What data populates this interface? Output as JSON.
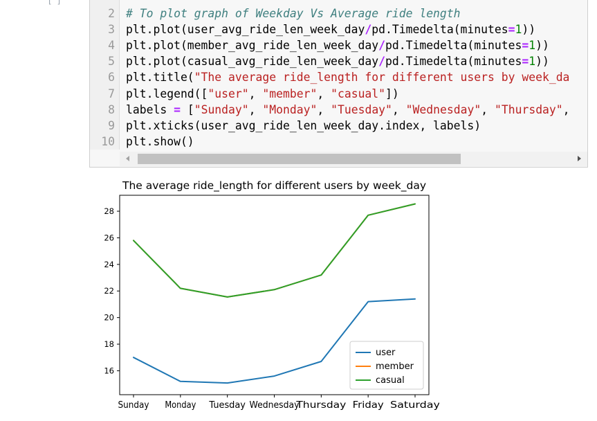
{
  "top": {
    "ellipsis": "[ ]"
  },
  "code_cell": {
    "lines": [
      {
        "num": "2",
        "parts": [
          {
            "t": "# To plot graph of Weekday Vs Average ride length",
            "c": "cm"
          }
        ]
      },
      {
        "num": "3",
        "parts": [
          {
            "t": "plt.plot(user_avg_ride_len_week_day",
            "c": "pn"
          },
          {
            "t": "/",
            "c": "op"
          },
          {
            "t": "pd.Timedelta(minutes",
            "c": "pn"
          },
          {
            "t": "=",
            "c": "op"
          },
          {
            "t": "1",
            "c": "nu"
          },
          {
            "t": "))",
            "c": "pn"
          }
        ]
      },
      {
        "num": "4",
        "parts": [
          {
            "t": "plt.plot(member_avg_ride_len_week_day",
            "c": "pn"
          },
          {
            "t": "/",
            "c": "op"
          },
          {
            "t": "pd.Timedelta(minutes",
            "c": "pn"
          },
          {
            "t": "=",
            "c": "op"
          },
          {
            "t": "1",
            "c": "nu"
          },
          {
            "t": "))",
            "c": "pn"
          }
        ]
      },
      {
        "num": "5",
        "parts": [
          {
            "t": "plt.plot(casual_avg_ride_len_week_day",
            "c": "pn"
          },
          {
            "t": "/",
            "c": "op"
          },
          {
            "t": "pd.Timedelta(minutes",
            "c": "pn"
          },
          {
            "t": "=",
            "c": "op"
          },
          {
            "t": "1",
            "c": "nu"
          },
          {
            "t": "))",
            "c": "pn"
          }
        ]
      },
      {
        "num": "6",
        "parts": [
          {
            "t": "plt.title(",
            "c": "pn"
          },
          {
            "t": "\"The average ride_length for different users by week_da",
            "c": "st"
          }
        ]
      },
      {
        "num": "7",
        "parts": [
          {
            "t": "plt.legend([",
            "c": "pn"
          },
          {
            "t": "\"user\"",
            "c": "st"
          },
          {
            "t": ", ",
            "c": "pn"
          },
          {
            "t": "\"member\"",
            "c": "st"
          },
          {
            "t": ", ",
            "c": "pn"
          },
          {
            "t": "\"casual\"",
            "c": "st"
          },
          {
            "t": "])",
            "c": "pn"
          }
        ]
      },
      {
        "num": "8",
        "parts": [
          {
            "t": "labels ",
            "c": "pn"
          },
          {
            "t": "=",
            "c": "op"
          },
          {
            "t": " [",
            "c": "pn"
          },
          {
            "t": "\"Sunday\"",
            "c": "st"
          },
          {
            "t": ", ",
            "c": "pn"
          },
          {
            "t": "\"Monday\"",
            "c": "st"
          },
          {
            "t": ", ",
            "c": "pn"
          },
          {
            "t": "\"Tuesday\"",
            "c": "st"
          },
          {
            "t": ", ",
            "c": "pn"
          },
          {
            "t": "\"Wednesday\"",
            "c": "st"
          },
          {
            "t": ", ",
            "c": "pn"
          },
          {
            "t": "\"Thursday\"",
            "c": "st"
          },
          {
            "t": ",",
            "c": "pn"
          }
        ]
      },
      {
        "num": "9",
        "parts": [
          {
            "t": "plt.xticks(user_avg_ride_len_week_day.index, labels)",
            "c": "pn"
          }
        ]
      },
      {
        "num": "10",
        "parts": [
          {
            "t": "plt.show()",
            "c": "pn"
          }
        ]
      }
    ]
  },
  "scrollbar": {
    "thumb_fraction": 0.73
  },
  "colors": {
    "user": "#1f77b4",
    "member": "#ff7f0e",
    "casual": "#2ca02c",
    "code_bg": "#f7f7f7"
  },
  "chart_data": {
    "type": "line",
    "title": "The average ride_length for different users by week_day",
    "xlabel": "",
    "ylabel": "",
    "categories": [
      "Sunday",
      "Monday",
      "Tuesday",
      "Wednesday",
      "Thursday",
      "Friday",
      "Saturday"
    ],
    "ylim": [
      14.2,
      29.2
    ],
    "yticks": [
      16,
      18,
      20,
      22,
      24,
      26,
      28
    ],
    "grid": false,
    "legend_position": "lower right",
    "series": [
      {
        "name": "user",
        "color": "#1f77b4",
        "values": [
          17.0,
          15.2,
          15.08,
          15.6,
          16.7,
          21.2,
          21.4
        ]
      },
      {
        "name": "member",
        "color": "#ff7f0e",
        "values": [
          25.8,
          22.2,
          21.55,
          22.1,
          23.2,
          27.7,
          28.55
        ]
      },
      {
        "name": "casual",
        "color": "#2ca02c",
        "values": [
          25.8,
          22.2,
          21.55,
          22.1,
          23.2,
          27.7,
          28.55
        ]
      }
    ]
  }
}
